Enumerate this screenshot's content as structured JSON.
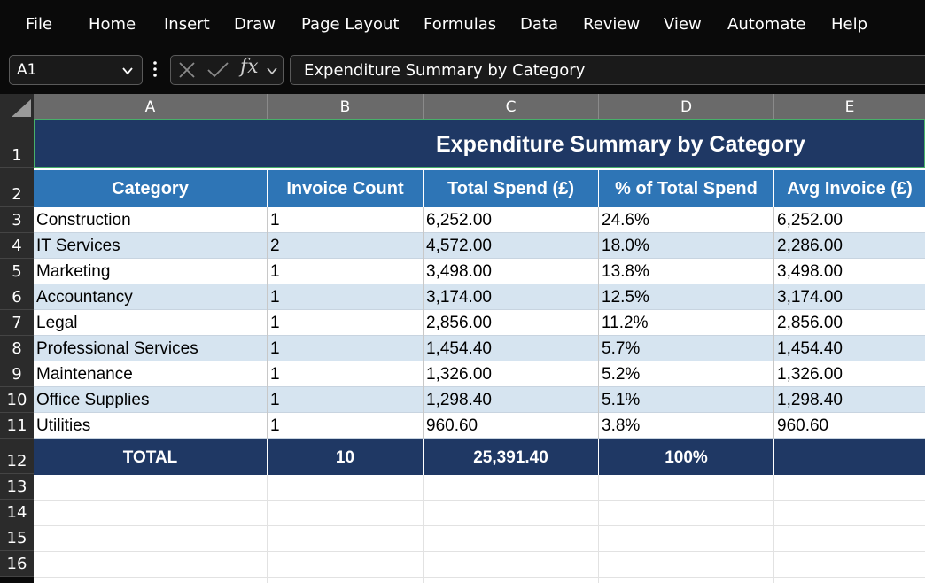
{
  "menu": [
    "File",
    "Home",
    "Insert",
    "Draw",
    "Page Layout",
    "Formulas",
    "Data",
    "Review",
    "View",
    "Automate",
    "Help"
  ],
  "name_box": "A1",
  "formula_bar": {
    "fx_label": "fx",
    "value": "Expenditure Summary by Category"
  },
  "columns": [
    "A",
    "B",
    "C",
    "D",
    "E"
  ],
  "rows": [
    "1",
    "2",
    "3",
    "4",
    "5",
    "6",
    "7",
    "8",
    "9",
    "10",
    "11",
    "12",
    "13",
    "14",
    "15",
    "16"
  ],
  "sheet": {
    "title": "Expenditure Summary by Category",
    "headers": [
      "Category",
      "Invoice Count",
      "Total Spend (£)",
      "% of Total Spend",
      "Avg Invoice (£)"
    ],
    "data": [
      [
        "Construction",
        "1",
        "6,252.00",
        "24.6%",
        "6,252.00"
      ],
      [
        "IT Services",
        "2",
        "4,572.00",
        "18.0%",
        "2,286.00"
      ],
      [
        "Marketing",
        "1",
        "3,498.00",
        "13.8%",
        "3,498.00"
      ],
      [
        "Accountancy",
        "1",
        "3,174.00",
        "12.5%",
        "3,174.00"
      ],
      [
        "Legal",
        "1",
        "2,856.00",
        "11.2%",
        "2,856.00"
      ],
      [
        "Professional Services",
        "1",
        "1,454.40",
        "5.7%",
        "1,454.40"
      ],
      [
        "Maintenance",
        "1",
        "1,326.00",
        "5.2%",
        "1,326.00"
      ],
      [
        "Office Supplies",
        "1",
        "1,298.40",
        "5.1%",
        "1,298.40"
      ],
      [
        "Utilities",
        "1",
        "960.60",
        "3.8%",
        "960.60"
      ]
    ],
    "total": [
      "TOTAL",
      "10",
      "25,391.40",
      "100%",
      ""
    ]
  },
  "colors": {
    "title_bg": "#1f3864",
    "header_bg": "#2e75b6",
    "band_bg": "#d6e4f0",
    "selection": "#48b06a"
  }
}
